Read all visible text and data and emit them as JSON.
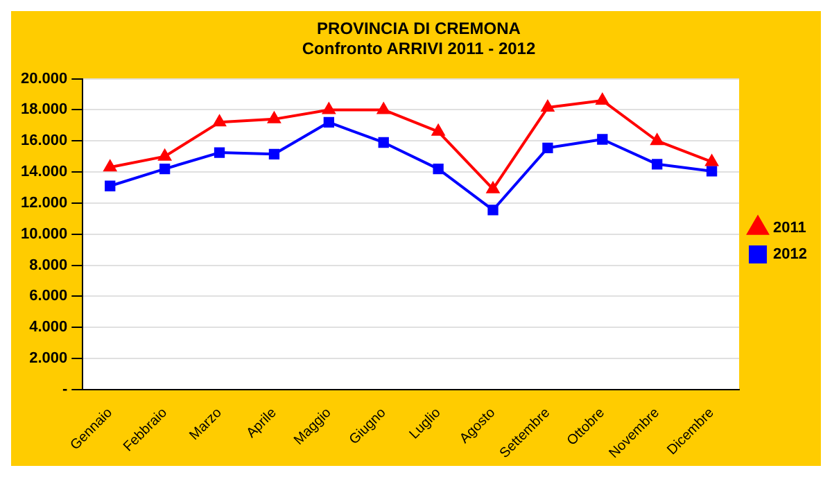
{
  "chart_data": {
    "type": "line",
    "title": [
      "PROVINCIA DI CREMONA",
      "Confronto ARRIVI 2011 - 2012"
    ],
    "categories": [
      "Gennaio",
      "Febbraio",
      "Marzo",
      "Aprile",
      "Maggio",
      "Giugno",
      "Luglio",
      "Agosto",
      "Settembre",
      "Ottobre",
      "Novembre",
      "Dicembre"
    ],
    "series": [
      {
        "name": "2011",
        "color": "#ff0000",
        "marker": "triangle",
        "values": [
          14300,
          15000,
          17200,
          17400,
          18000,
          18000,
          16600,
          12900,
          18150,
          18600,
          16000,
          14650
        ]
      },
      {
        "name": "2012",
        "color": "#0000ff",
        "marker": "square",
        "values": [
          13100,
          14200,
          15250,
          15150,
          17200,
          15900,
          14200,
          11550,
          15550,
          16100,
          14500,
          14050
        ]
      }
    ],
    "ylim": [
      0,
      20000
    ],
    "yticks": [
      {
        "value": 0,
        "label": "-"
      },
      {
        "value": 2000,
        "label": "2.000"
      },
      {
        "value": 4000,
        "label": "4.000"
      },
      {
        "value": 6000,
        "label": "6.000"
      },
      {
        "value": 8000,
        "label": "8.000"
      },
      {
        "value": 10000,
        "label": "10.000"
      },
      {
        "value": 12000,
        "label": "12.000"
      },
      {
        "value": 14000,
        "label": "14.000"
      },
      {
        "value": 16000,
        "label": "16.000"
      },
      {
        "value": 18000,
        "label": "18.000"
      },
      {
        "value": 20000,
        "label": "20.000"
      }
    ],
    "grid": "y",
    "legend": "right"
  }
}
